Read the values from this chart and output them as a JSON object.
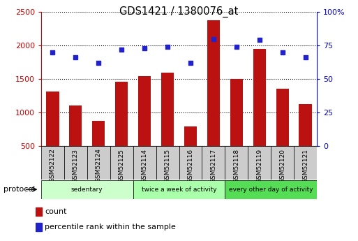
{
  "title": "GDS1421 / 1380076_at",
  "samples": [
    "GSM52122",
    "GSM52123",
    "GSM52124",
    "GSM52125",
    "GSM52114",
    "GSM52115",
    "GSM52116",
    "GSM52117",
    "GSM52118",
    "GSM52119",
    "GSM52120",
    "GSM52121"
  ],
  "counts": [
    1310,
    1105,
    870,
    1460,
    1540,
    1590,
    790,
    2380,
    1500,
    1950,
    1355,
    1120
  ],
  "percentiles": [
    70,
    66,
    62,
    72,
    73,
    74,
    62,
    80,
    74,
    79,
    70,
    66
  ],
  "groups": [
    {
      "label": "sedentary",
      "start": 0,
      "end": 3,
      "color": "#ccffcc"
    },
    {
      "label": "twice a week of activity",
      "start": 4,
      "end": 7,
      "color": "#aaffaa"
    },
    {
      "label": "every other day of activity",
      "start": 8,
      "end": 11,
      "color": "#55dd55"
    }
  ],
  "ylim_left": [
    500,
    2500
  ],
  "ylim_right": [
    0,
    100
  ],
  "yticks_left": [
    500,
    1000,
    1500,
    2000,
    2500
  ],
  "yticks_right": [
    0,
    25,
    50,
    75,
    100
  ],
  "bar_color": "#bb1111",
  "dot_color": "#2222cc",
  "bg_color": "#ffffff",
  "tickbox_color": "#cccccc",
  "protocol_label": "protocol",
  "legend_count": "count",
  "legend_percentile": "percentile rank within the sample",
  "grid_color": "#000000",
  "left_axis_color": "#cc0000",
  "right_axis_color": "#0000cc"
}
